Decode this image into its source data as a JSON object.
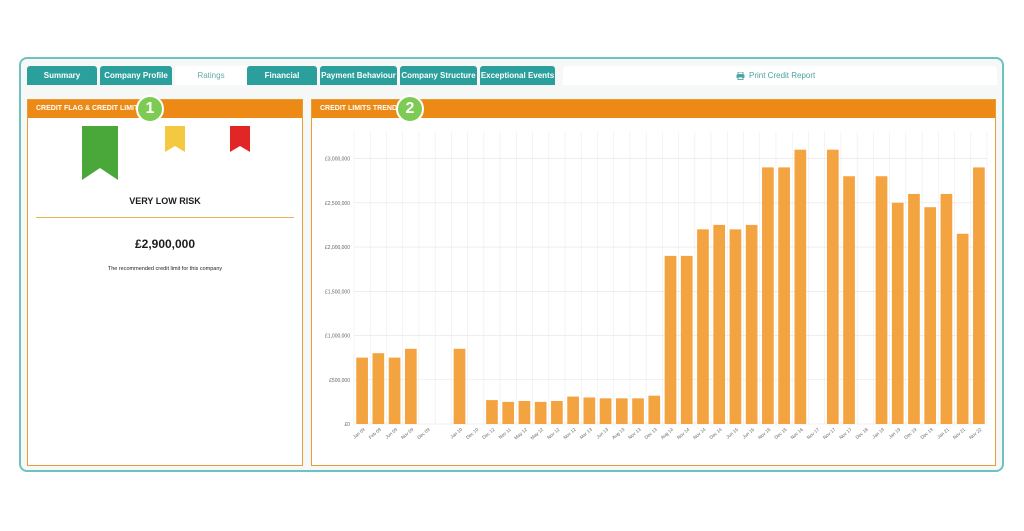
{
  "tabs": [
    {
      "label": "Summary",
      "active": false
    },
    {
      "label": "Company Profile",
      "active": false
    },
    {
      "label": "Ratings",
      "active": true
    },
    {
      "label": "Financial",
      "active": false
    },
    {
      "label": "Payment Behaviour",
      "active": false
    },
    {
      "label": "Company Structure",
      "active": false
    },
    {
      "label": "Exceptional Events",
      "active": false
    }
  ],
  "print_label": "Print Credit Report",
  "left_panel": {
    "title": "CREDIT FLAG & CREDIT LIMIT",
    "badge": "1",
    "flags": [
      {
        "name": "green-flag",
        "color": "#4aa83a",
        "selected": true
      },
      {
        "name": "amber-flag",
        "color": "#f5c842",
        "selected": false
      },
      {
        "name": "red-flag",
        "color": "#e22626",
        "selected": false
      }
    ],
    "risk_label": "VERY LOW RISK",
    "credit_limit": "£2,900,000",
    "caption": "The recommended credit limit for this company"
  },
  "right_panel": {
    "title": "CREDIT LIMITS TREND",
    "badge": "2"
  },
  "colors": {
    "teal": "#2a9f9b",
    "orange": "#ec8a15",
    "bar": "#f3a340"
  },
  "chart_data": {
    "type": "bar",
    "categories": [
      "Jan 09",
      "Feb 09",
      "Jun 09",
      "Nov 09",
      "Dec 09",
      "",
      "Jan 10",
      "Dec 10",
      "Dec 12",
      "Nov 11",
      "May 12",
      "May 12",
      "Nov 12",
      "Nov 12",
      "Mar 13",
      "Jun 13",
      "Aug 13",
      "Nov 13",
      "Dec 13",
      "Aug 14",
      "Nov 14",
      "Nov 14",
      "Dec 14",
      "Jun 15",
      "Jun 15",
      "Nov 15",
      "Dec 15",
      "Nov 16",
      "Nov 17",
      "Nov 17",
      "Nov 17",
      "Dec 18",
      "Jan 19",
      "Jan 19",
      "Dec 19",
      "Dec 19",
      "Jan 21",
      "Nov 21",
      "Nov 22"
    ],
    "values": [
      750000,
      800000,
      750000,
      850000,
      0,
      0,
      850000,
      0,
      270000,
      250000,
      260000,
      250000,
      260000,
      310000,
      300000,
      290000,
      290000,
      290000,
      320000,
      1900000,
      1900000,
      2200000,
      2250000,
      2200000,
      2250000,
      2900000,
      2900000,
      3100000,
      0,
      3100000,
      2800000,
      0,
      2800000,
      2500000,
      2600000,
      2450000,
      2600000,
      2150000,
      2900000
    ],
    "tick_labels": [
      "£0",
      "£500,000",
      "£1,000,000",
      "£1,500,000",
      "£2,000,000",
      "£2,500,000",
      "£3,000,000"
    ],
    "ylim": [
      0,
      3300000
    ],
    "grid": true
  }
}
